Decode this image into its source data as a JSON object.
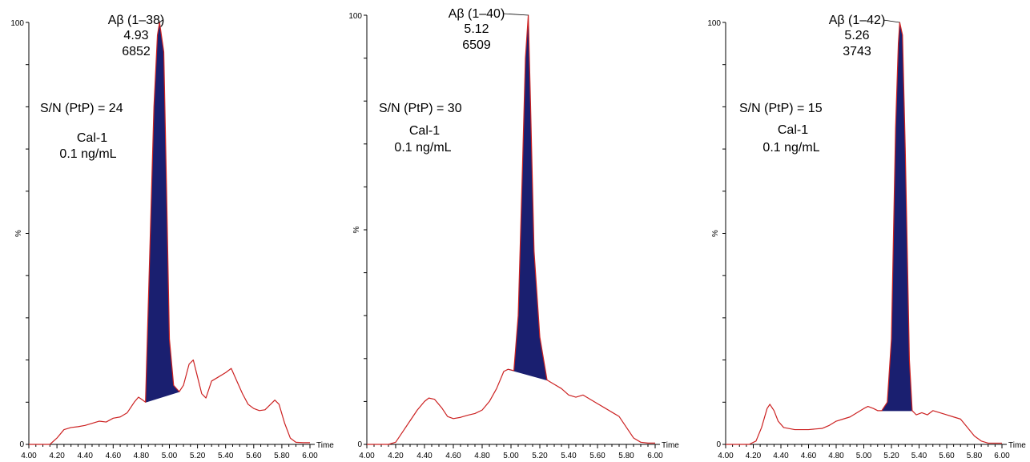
{
  "colors": {
    "trace": "#cc2222",
    "fill": "#1a1f70",
    "axis": "#000000"
  },
  "chart_data": [
    {
      "type": "line",
      "xlabel": "Time",
      "ylabel": "%",
      "xlim": [
        4.0,
        6.0
      ],
      "ylim": [
        0,
        100
      ],
      "x_ticks": [
        "4.00",
        "4.20",
        "4.40",
        "4.60",
        "4.80",
        "5.00",
        "5.20",
        "5.40",
        "5.60",
        "5.80",
        "6.00"
      ],
      "y_ticks": [
        "0",
        "100"
      ],
      "peak": {
        "label": "Aβ (1–38)",
        "rt": "4.93",
        "area": "6852",
        "x": 4.93,
        "y": 100
      },
      "annotations": [
        "S/N (PtP) = 24",
        "Cal-1",
        "0.1 ng/mL"
      ],
      "integration": {
        "start": [
          4.83,
          10
        ],
        "end": [
          5.07,
          12.5
        ]
      },
      "trace": [
        [
          4.0,
          0
        ],
        [
          4.08,
          0
        ],
        [
          4.15,
          0
        ],
        [
          4.2,
          1.5
        ],
        [
          4.25,
          3.5
        ],
        [
          4.3,
          4.0
        ],
        [
          4.35,
          4.2
        ],
        [
          4.4,
          4.5
        ],
        [
          4.45,
          5.0
        ],
        [
          4.5,
          5.5
        ],
        [
          4.55,
          5.3
        ],
        [
          4.6,
          6.2
        ],
        [
          4.65,
          6.5
        ],
        [
          4.7,
          7.5
        ],
        [
          4.75,
          10.0
        ],
        [
          4.78,
          11.2
        ],
        [
          4.81,
          10.5
        ],
        [
          4.83,
          10.0
        ],
        [
          4.86,
          45
        ],
        [
          4.89,
          80
        ],
        [
          4.915,
          97
        ],
        [
          4.93,
          100
        ],
        [
          4.96,
          93
        ],
        [
          4.98,
          60
        ],
        [
          5.0,
          25
        ],
        [
          5.03,
          14
        ],
        [
          5.07,
          12.5
        ],
        [
          5.1,
          14
        ],
        [
          5.14,
          19
        ],
        [
          5.17,
          20
        ],
        [
          5.2,
          16
        ],
        [
          5.23,
          12
        ],
        [
          5.26,
          11
        ],
        [
          5.3,
          15
        ],
        [
          5.35,
          16
        ],
        [
          5.4,
          17
        ],
        [
          5.44,
          18
        ],
        [
          5.48,
          15
        ],
        [
          5.52,
          12
        ],
        [
          5.56,
          9.5
        ],
        [
          5.6,
          8.5
        ],
        [
          5.64,
          8
        ],
        [
          5.68,
          8.2
        ],
        [
          5.72,
          9.5
        ],
        [
          5.75,
          10.5
        ],
        [
          5.78,
          9.5
        ],
        [
          5.82,
          5
        ],
        [
          5.86,
          1.5
        ],
        [
          5.9,
          0.5
        ],
        [
          5.95,
          0.4
        ],
        [
          6.0,
          0.4
        ]
      ]
    },
    {
      "type": "line",
      "xlabel": "Time",
      "ylabel": "%",
      "xlim": [
        4.0,
        6.0
      ],
      "ylim": [
        0,
        100
      ],
      "x_ticks": [
        "4.00",
        "4.20",
        "4.40",
        "4.60",
        "4.80",
        "5.00",
        "5.20",
        "5.40",
        "5.60",
        "5.80",
        "6.00"
      ],
      "y_ticks": [
        "0",
        "100"
      ],
      "peak": {
        "label": "Aβ (1–40)",
        "rt": "5.12",
        "area": "6509",
        "x": 5.12,
        "y": 100
      },
      "annotations": [
        "S/N (PtP) = 30",
        "Cal-1",
        "0.1 ng/mL"
      ],
      "integration": {
        "start": [
          4.98,
          17.5
        ],
        "end": [
          5.25,
          15
        ]
      },
      "trace": [
        [
          4.0,
          0
        ],
        [
          4.1,
          0
        ],
        [
          4.15,
          0
        ],
        [
          4.2,
          0.5
        ],
        [
          4.25,
          3
        ],
        [
          4.3,
          5.5
        ],
        [
          4.35,
          8
        ],
        [
          4.4,
          10
        ],
        [
          4.43,
          10.8
        ],
        [
          4.47,
          10.5
        ],
        [
          4.52,
          8.5
        ],
        [
          4.56,
          6.5
        ],
        [
          4.6,
          6
        ],
        [
          4.65,
          6.3
        ],
        [
          4.7,
          6.8
        ],
        [
          4.75,
          7.2
        ],
        [
          4.8,
          8
        ],
        [
          4.85,
          10
        ],
        [
          4.9,
          13
        ],
        [
          4.95,
          17
        ],
        [
          4.98,
          17.5
        ],
        [
          5.02,
          17.2
        ],
        [
          5.05,
          30
        ],
        [
          5.08,
          65
        ],
        [
          5.1,
          90
        ],
        [
          5.12,
          100
        ],
        [
          5.135,
          80
        ],
        [
          5.16,
          45
        ],
        [
          5.2,
          25
        ],
        [
          5.25,
          15
        ],
        [
          5.3,
          14
        ],
        [
          5.35,
          13
        ],
        [
          5.4,
          11.5
        ],
        [
          5.45,
          11
        ],
        [
          5.5,
          11.5
        ],
        [
          5.55,
          10.5
        ],
        [
          5.6,
          9.5
        ],
        [
          5.65,
          8.5
        ],
        [
          5.7,
          7.5
        ],
        [
          5.75,
          6.5
        ],
        [
          5.8,
          4
        ],
        [
          5.85,
          1.5
        ],
        [
          5.9,
          0.5
        ],
        [
          5.95,
          0.3
        ],
        [
          6.0,
          0.3
        ]
      ]
    },
    {
      "type": "line",
      "xlabel": "Time",
      "ylabel": "%",
      "xlim": [
        4.0,
        6.0
      ],
      "ylim": [
        0,
        100
      ],
      "x_ticks": [
        "4.00",
        "4.20",
        "4.40",
        "4.60",
        "4.80",
        "5.00",
        "5.20",
        "5.40",
        "5.60",
        "5.80",
        "6.00"
      ],
      "y_ticks": [
        "0",
        "100"
      ],
      "peak": {
        "label": "Aβ (1–42)",
        "rt": "5.26",
        "area": "3743",
        "x": 5.26,
        "y": 100
      },
      "annotations": [
        "S/N (PtP) = 15",
        "Cal-1",
        "0.1 ng/mL"
      ],
      "integration": {
        "start": [
          5.13,
          8
        ],
        "end": [
          5.35,
          8
        ]
      },
      "trace": [
        [
          4.0,
          0
        ],
        [
          4.1,
          0
        ],
        [
          4.17,
          0
        ],
        [
          4.22,
          0.8
        ],
        [
          4.26,
          4
        ],
        [
          4.3,
          8.5
        ],
        [
          4.32,
          9.5
        ],
        [
          4.35,
          8
        ],
        [
          4.38,
          5.5
        ],
        [
          4.42,
          4
        ],
        [
          4.5,
          3.5
        ],
        [
          4.6,
          3.5
        ],
        [
          4.7,
          3.8
        ],
        [
          4.75,
          4.5
        ],
        [
          4.8,
          5.5
        ],
        [
          4.85,
          6
        ],
        [
          4.9,
          6.5
        ],
        [
          4.95,
          7.5
        ],
        [
          5.0,
          8.5
        ],
        [
          5.03,
          9
        ],
        [
          5.07,
          8.5
        ],
        [
          5.1,
          8
        ],
        [
          5.13,
          8
        ],
        [
          5.17,
          10
        ],
        [
          5.2,
          25
        ],
        [
          5.23,
          75
        ],
        [
          5.25,
          95
        ],
        [
          5.26,
          100
        ],
        [
          5.28,
          97
        ],
        [
          5.3,
          70
        ],
        [
          5.33,
          20
        ],
        [
          5.35,
          8
        ],
        [
          5.38,
          7
        ],
        [
          5.42,
          7.5
        ],
        [
          5.46,
          7
        ],
        [
          5.5,
          8
        ],
        [
          5.55,
          7.5
        ],
        [
          5.6,
          7
        ],
        [
          5.65,
          6.5
        ],
        [
          5.7,
          6
        ],
        [
          5.75,
          4
        ],
        [
          5.8,
          2
        ],
        [
          5.85,
          0.8
        ],
        [
          5.9,
          0.3
        ],
        [
          5.95,
          0.3
        ],
        [
          6.0,
          0.3
        ]
      ]
    }
  ]
}
